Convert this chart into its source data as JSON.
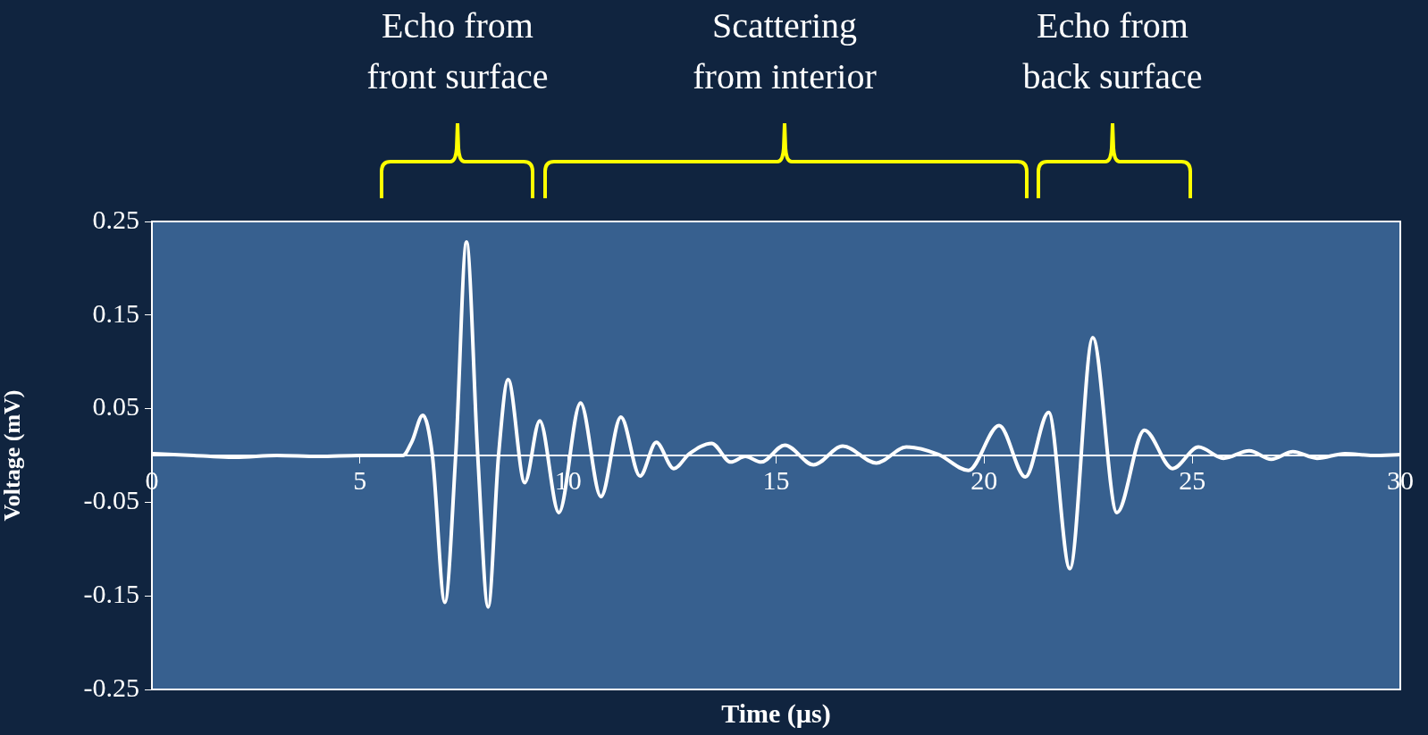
{
  "chart_data": {
    "type": "line",
    "xlabel": "Time (µs)",
    "ylabel": "Voltage (mV)",
    "annotations": [
      "Echo from\nfront surface",
      "Scattering\nfrom interior",
      "Echo from\nback surface"
    ],
    "xlim": [
      0,
      30
    ],
    "xticks": [
      0,
      5,
      10,
      15,
      20,
      25,
      30
    ],
    "ylim": [
      -0.25,
      0.25
    ],
    "yticks": [
      -0.25,
      -0.15,
      -0.05,
      0.05,
      0.15,
      0.25
    ],
    "grid": false,
    "legend": false,
    "marker": "none",
    "line_style": "solid",
    "series": [
      {
        "color": "#ffffff",
        "x": [
          0,
          1,
          2,
          3,
          4,
          5,
          6.03,
          6.25,
          6.51,
          6.74,
          7.04,
          7.3,
          7.56,
          7.83,
          8.08,
          8.33,
          8.56,
          8.96,
          9.32,
          9.78,
          10.3,
          10.79,
          11.27,
          11.73,
          12.12,
          12.54,
          12.92,
          13.45,
          13.91,
          14.26,
          14.64,
          15.21,
          15.9,
          16.6,
          17.41,
          18.13,
          18.9,
          19.62,
          20.36,
          20.99,
          21.55,
          22.06,
          22.61,
          23.19,
          23.85,
          24.53,
          25.15,
          25.75,
          26.37,
          26.9,
          27.42,
          28.0,
          28.67,
          29.34,
          30
        ],
        "values": [
          0.002,
          0,
          -0.002,
          0,
          -0.001,
          0,
          0,
          0.015,
          0.043,
          0,
          -0.157,
          0,
          0.228,
          0,
          -0.162,
          0,
          0.081,
          -0.029,
          0.037,
          -0.061,
          0.056,
          -0.044,
          0.041,
          -0.022,
          0.014,
          -0.014,
          0.002,
          0.013,
          -0.007,
          -0.001,
          -0.007,
          0.011,
          -0.01,
          0.01,
          -0.008,
          0.009,
          0.001,
          -0.016,
          0.032,
          -0.023,
          0.046,
          -0.121,
          0.126,
          -0.061,
          0.027,
          -0.014,
          0.009,
          -0.003,
          0.005,
          -0.004,
          0.004,
          -0.003,
          0.002,
          0,
          0.001
        ]
      }
    ]
  }
}
